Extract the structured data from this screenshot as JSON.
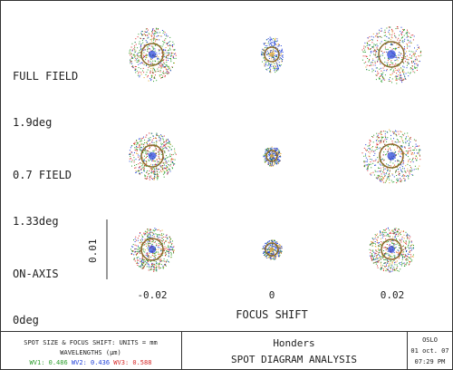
{
  "rows": [
    {
      "label": "FULL FIELD",
      "angle": "1.9deg"
    },
    {
      "label": "0.7 FIELD",
      "angle": "1.33deg"
    },
    {
      "label": "ON-AXIS",
      "angle": "0deg"
    }
  ],
  "scale_label": "0.01",
  "x_ticks": [
    "-0.02",
    "0",
    "0.02"
  ],
  "x_title": "FOCUS SHIFT",
  "footer": {
    "units_text": "SPOT SIZE & FOCUS SHIFT: UNITS = mm",
    "wavelengths_label": "WAVELENGTHS (µm)",
    "wavelengths": [
      {
        "text": "WV1: 0.486",
        "color": "#2a9d2a"
      },
      {
        "text": "WV2: 0.436",
        "color": "#1f3fd8"
      },
      {
        "text": "WV3: 0.588",
        "color": "#d62828"
      }
    ],
    "title": "Honders",
    "subtitle": "SPOT DIAGRAM ANALYSIS",
    "program": "OSLO",
    "date": "01 oct. 07",
    "time": "07:29 PM"
  },
  "colors": {
    "wv1": "#2a9d2a",
    "wv2": "#1f3fd8",
    "wv3": "#d62828",
    "ring": "#8a6a2a",
    "accent": "#e3a524"
  }
}
